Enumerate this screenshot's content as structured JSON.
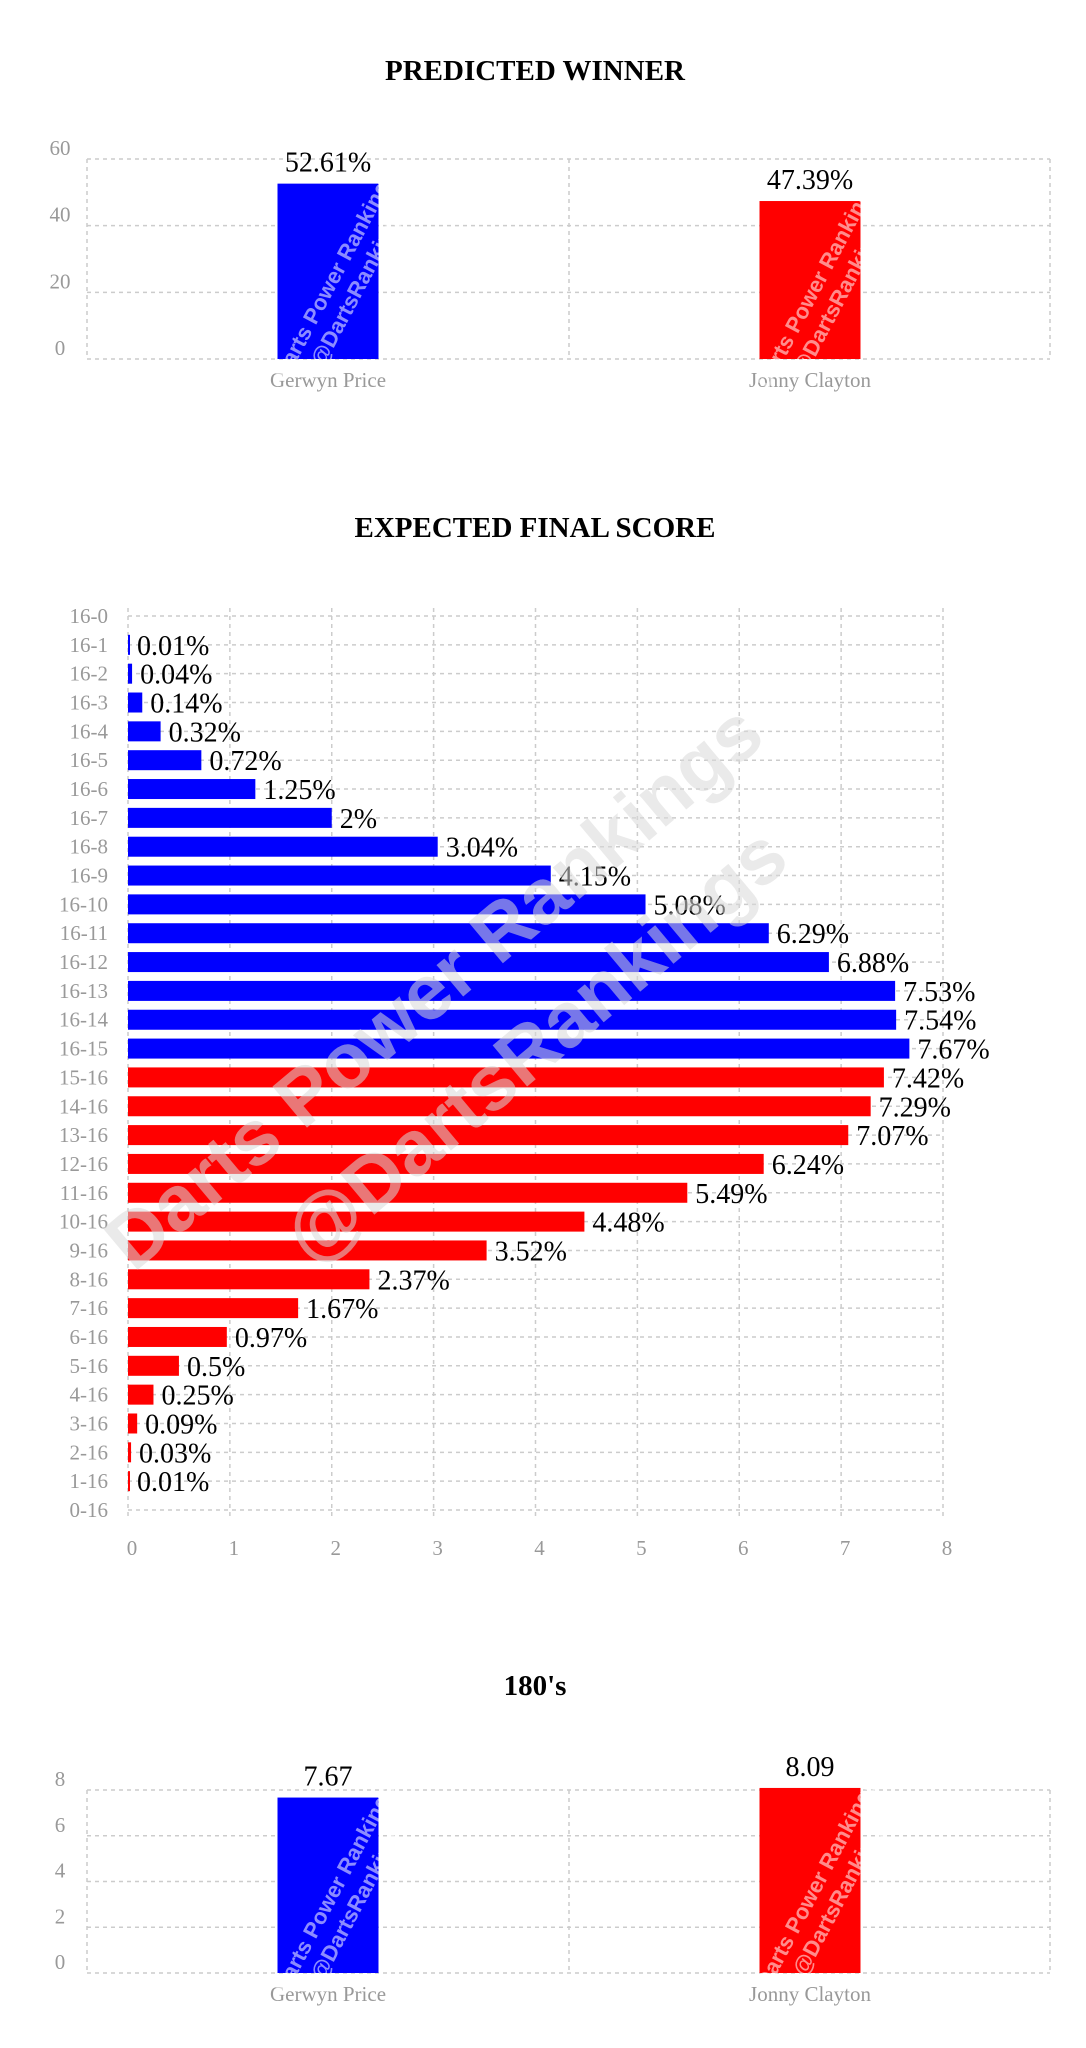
{
  "watermark": {
    "line1": "Darts Power Rankings",
    "line2": "@DartsRankings"
  },
  "colors": {
    "player1": "#0000ff",
    "player2": "#ff0000"
  },
  "chart_data": [
    {
      "type": "bar",
      "title": "PREDICTED WINNER",
      "categories": [
        "Gerwyn Price",
        "Jonny Clayton"
      ],
      "values": [
        52.61,
        47.39
      ],
      "labels": [
        "52.61%",
        "47.39%"
      ],
      "colors": [
        "#0000ff",
        "#ff0000"
      ],
      "ylim": [
        0,
        60
      ],
      "yticks": [
        0,
        20,
        40,
        60
      ],
      "grid": true
    },
    {
      "type": "bar",
      "orientation": "horizontal",
      "title": "EXPECTED FINAL SCORE",
      "categories": [
        "16-0",
        "16-1",
        "16-2",
        "16-3",
        "16-4",
        "16-5",
        "16-6",
        "16-7",
        "16-8",
        "16-9",
        "16-10",
        "16-11",
        "16-12",
        "16-13",
        "16-14",
        "16-15",
        "15-16",
        "14-16",
        "13-16",
        "12-16",
        "11-16",
        "10-16",
        "9-16",
        "8-16",
        "7-16",
        "6-16",
        "5-16",
        "4-16",
        "3-16",
        "2-16",
        "1-16",
        "0-16"
      ],
      "values": [
        0,
        0.01,
        0.04,
        0.14,
        0.32,
        0.72,
        1.25,
        2,
        3.04,
        4.15,
        5.08,
        6.29,
        6.88,
        7.53,
        7.54,
        7.67,
        7.42,
        7.29,
        7.07,
        6.24,
        5.49,
        4.48,
        3.52,
        2.37,
        1.67,
        0.97,
        0.5,
        0.25,
        0.09,
        0.03,
        0.01,
        0
      ],
      "labels": [
        "",
        "0.01%",
        "0.04%",
        "0.14%",
        "0.32%",
        "0.72%",
        "1.25%",
        "2%",
        "3.04%",
        "4.15%",
        "5.08%",
        "6.29%",
        "6.88%",
        "7.53%",
        "7.54%",
        "7.67%",
        "7.42%",
        "7.29%",
        "7.07%",
        "6.24%",
        "5.49%",
        "4.48%",
        "3.52%",
        "2.37%",
        "1.67%",
        "0.97%",
        "0.5%",
        "0.25%",
        "0.09%",
        "0.03%",
        "0.01%",
        ""
      ],
      "colors": [
        "#0000ff",
        "#0000ff",
        "#0000ff",
        "#0000ff",
        "#0000ff",
        "#0000ff",
        "#0000ff",
        "#0000ff",
        "#0000ff",
        "#0000ff",
        "#0000ff",
        "#0000ff",
        "#0000ff",
        "#0000ff",
        "#0000ff",
        "#0000ff",
        "#ff0000",
        "#ff0000",
        "#ff0000",
        "#ff0000",
        "#ff0000",
        "#ff0000",
        "#ff0000",
        "#ff0000",
        "#ff0000",
        "#ff0000",
        "#ff0000",
        "#ff0000",
        "#ff0000",
        "#ff0000",
        "#ff0000",
        "#ff0000"
      ],
      "xlim": [
        0,
        8
      ],
      "xticks": [
        0,
        1,
        2,
        3,
        4,
        5,
        6,
        7,
        8
      ],
      "grid": true
    },
    {
      "type": "bar",
      "title": "180's",
      "categories": [
        "Gerwyn Price",
        "Jonny Clayton"
      ],
      "values": [
        7.67,
        8.09
      ],
      "labels": [
        "7.67",
        "8.09"
      ],
      "colors": [
        "#0000ff",
        "#ff0000"
      ],
      "ylim": [
        0,
        8
      ],
      "yticks": [
        0,
        2,
        4,
        6,
        8
      ],
      "grid": true
    }
  ]
}
